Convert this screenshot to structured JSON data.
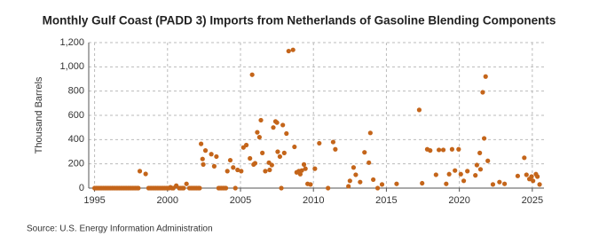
{
  "chart_data": {
    "type": "scatter",
    "title": "Monthly Gulf Coast (PADD 3) Imports from Netherlands of Gasoline Blending Components",
    "y_label": "Thousand Barrels",
    "source": "Source: U.S. Energy Information Administration",
    "color": "#c4651a",
    "grid": true,
    "xlim": [
      1994.6,
      2025.8
    ],
    "ylim": [
      0,
      1200
    ],
    "xticks": [
      1995,
      2000,
      2005,
      2010,
      2015,
      2020,
      2025
    ],
    "yticks": [
      0,
      200,
      400,
      600,
      800,
      {
        "value": 1000,
        "label": "1,000"
      },
      {
        "value": 1200,
        "label": "1,200"
      }
    ],
    "x": [
      1995.0,
      1995.1,
      1995.2,
      1995.3,
      1995.4,
      1995.5,
      1995.6,
      1995.7,
      1995.8,
      1995.9,
      1996.0,
      1996.1,
      1996.2,
      1996.3,
      1996.4,
      1996.5,
      1996.6,
      1996.7,
      1996.8,
      1996.9,
      1997.0,
      1997.1,
      1997.2,
      1997.3,
      1997.4,
      1997.5,
      1997.6,
      1997.7,
      1997.8,
      1997.9,
      1998.0,
      1998.1,
      1998.5,
      1998.7,
      1998.8,
      1998.9,
      1999.0,
      1999.1,
      1999.2,
      1999.3,
      1999.4,
      1999.5,
      1999.6,
      1999.7,
      1999.8,
      1999.9,
      2000.0,
      2000.1,
      2000.2,
      2000.3,
      2000.4,
      2000.6,
      2000.8,
      2000.9,
      2001.0,
      2001.1,
      2001.3,
      2001.5,
      2001.6,
      2001.7,
      2001.8,
      2001.9,
      2002.0,
      2002.1,
      2002.2,
      2002.3,
      2002.4,
      2002.45,
      2002.6,
      2003.0,
      2003.2,
      2003.35,
      2003.5,
      2003.6,
      2003.7,
      2003.8,
      2003.9,
      2004.0,
      2004.1,
      2004.3,
      2004.5,
      2004.65,
      2004.8,
      2005.05,
      2005.2,
      2005.4,
      2005.65,
      2005.8,
      2005.9,
      2006.0,
      2006.15,
      2006.3,
      2006.4,
      2006.5,
      2006.7,
      2006.95,
      2007.0,
      2007.15,
      2007.25,
      2007.4,
      2007.5,
      2007.55,
      2007.7,
      2007.8,
      2007.9,
      2008.0,
      2008.15,
      2008.3,
      2008.6,
      2008.7,
      2008.85,
      2009.0,
      2009.1,
      2009.2,
      2009.35,
      2009.45,
      2009.6,
      2009.8,
      2010.1,
      2010.4,
      2011.0,
      2011.35,
      2011.5,
      2012.4,
      2012.5,
      2012.75,
      2012.9,
      2013.2,
      2013.5,
      2013.8,
      2013.9,
      2014.1,
      2014.4,
      2014.7,
      2015.7,
      2017.25,
      2017.45,
      2017.8,
      2018.0,
      2018.4,
      2018.6,
      2018.9,
      2019.1,
      2019.3,
      2019.5,
      2019.7,
      2019.95,
      2020.1,
      2020.3,
      2020.55,
      2021.1,
      2021.2,
      2021.4,
      2021.45,
      2021.6,
      2021.7,
      2021.8,
      2021.95,
      2022.3,
      2022.75,
      2023.1,
      2024.0,
      2024.45,
      2024.6,
      2024.8,
      2024.95,
      2025.05,
      2025.25,
      2025.35,
      2025.5
    ],
    "values": [
      0,
      0,
      0,
      0,
      0,
      0,
      0,
      0,
      0,
      0,
      0,
      0,
      0,
      0,
      0,
      0,
      0,
      0,
      0,
      0,
      0,
      0,
      0,
      0,
      0,
      0,
      0,
      0,
      0,
      0,
      0,
      140,
      117,
      0,
      0,
      0,
      0,
      0,
      0,
      0,
      0,
      0,
      0,
      0,
      0,
      0,
      0,
      0,
      7,
      0,
      0,
      20,
      0,
      0,
      0,
      0,
      35,
      0,
      0,
      0,
      0,
      0,
      0,
      0,
      0,
      365,
      240,
      195,
      310,
      280,
      180,
      260,
      0,
      0,
      0,
      0,
      0,
      0,
      140,
      230,
      170,
      0,
      150,
      140,
      335,
      355,
      245,
      935,
      195,
      205,
      460,
      420,
      560,
      290,
      140,
      210,
      150,
      190,
      500,
      550,
      540,
      300,
      260,
      0,
      520,
      290,
      450,
      1130,
      1140,
      340,
      130,
      140,
      115,
      145,
      195,
      160,
      35,
      30,
      160,
      370,
      0,
      380,
      320,
      15,
      60,
      170,
      110,
      50,
      295,
      210,
      455,
      70,
      0,
      30,
      35,
      645,
      40,
      320,
      310,
      110,
      315,
      315,
      35,
      115,
      320,
      145,
      320,
      115,
      60,
      140,
      105,
      190,
      290,
      155,
      790,
      410,
      920,
      225,
      30,
      50,
      35,
      100,
      250,
      110,
      75,
      95,
      60,
      115,
      95,
      30
    ]
  }
}
